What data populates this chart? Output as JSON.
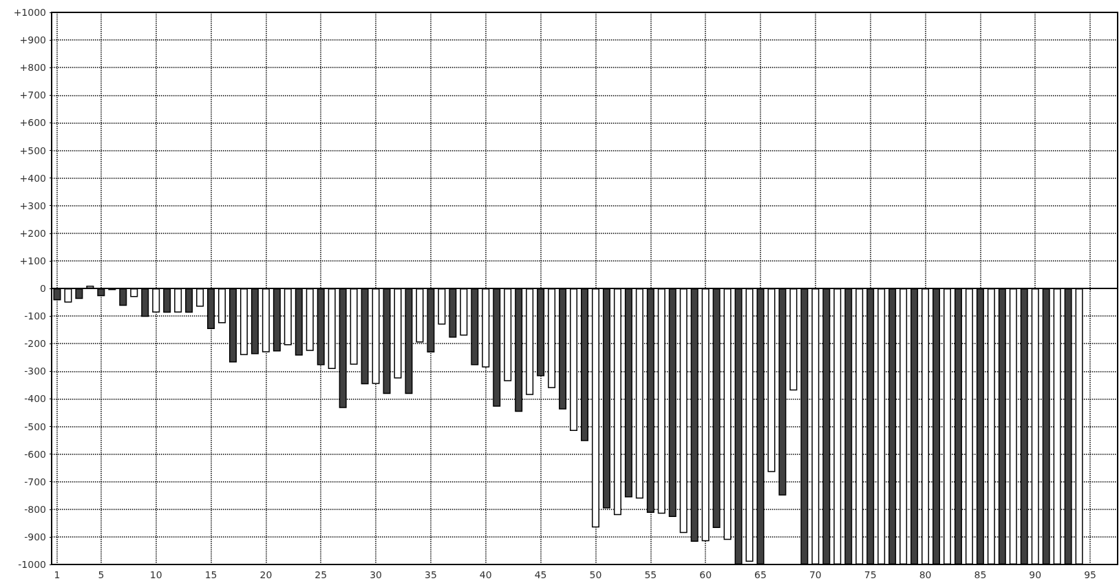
{
  "chart_data": {
    "type": "bar",
    "x": [
      1,
      2,
      3,
      4,
      5,
      6,
      7,
      8,
      9,
      10,
      11,
      12,
      13,
      14,
      15,
      16,
      17,
      18,
      19,
      20,
      21,
      22,
      23,
      24,
      25,
      26,
      27,
      28,
      29,
      30,
      31,
      32,
      33,
      34,
      35,
      36,
      37,
      38,
      39,
      40,
      41,
      42,
      43,
      44,
      45,
      46,
      47,
      48,
      49,
      50,
      51,
      52,
      53,
      54,
      55,
      56,
      57,
      58,
      59,
      60,
      61,
      62,
      63,
      64,
      65,
      66,
      67,
      68,
      69,
      70,
      71,
      72,
      73,
      74,
      75,
      76,
      77,
      78,
      79,
      80,
      81,
      82,
      83,
      84,
      85,
      86,
      87,
      88,
      89,
      90,
      91,
      92,
      93,
      94
    ],
    "values": [
      -43,
      -51,
      -38,
      10,
      -28,
      -6,
      -63,
      -31,
      -103,
      -87,
      -88,
      -87,
      -88,
      -66,
      -147,
      -126,
      -268,
      -241,
      -238,
      -231,
      -228,
      -206,
      -243,
      -226,
      -278,
      -292,
      -433,
      -276,
      -347,
      -346,
      -382,
      -326,
      -382,
      -196,
      -232,
      -131,
      -178,
      -171,
      -278,
      -286,
      -428,
      -336,
      -447,
      -386,
      -318,
      -361,
      -438,
      -516,
      -553,
      -866,
      -797,
      -821,
      -757,
      -761,
      -813,
      -816,
      -828,
      -886,
      -918,
      -916,
      -868,
      -911,
      -1000,
      -990,
      -1000,
      -665,
      -750,
      -370,
      -1000,
      -1000,
      -1000,
      -1000,
      -1000,
      -1000,
      -1000,
      -1000,
      -1000,
      -1000,
      -1000,
      -1000,
      -1000,
      -1000,
      -1000,
      -1000,
      -1000,
      -1000,
      -1000,
      -1000,
      -1000,
      -1000,
      -1000,
      -1000,
      -1000,
      -1000
    ],
    "colors": [
      "#404040",
      "#ffffff",
      "#404040",
      "#ffffff",
      "#404040",
      "#ffffff",
      "#404040",
      "#ffffff",
      "#404040",
      "#ffffff",
      "#404040",
      "#ffffff",
      "#404040",
      "#ffffff",
      "#404040",
      "#ffffff",
      "#404040",
      "#ffffff",
      "#404040",
      "#ffffff",
      "#404040",
      "#ffffff",
      "#404040",
      "#ffffff",
      "#404040",
      "#ffffff",
      "#404040",
      "#ffffff",
      "#404040",
      "#ffffff",
      "#404040",
      "#ffffff",
      "#404040",
      "#ffffff",
      "#404040",
      "#ffffff",
      "#404040",
      "#ffffff",
      "#404040",
      "#ffffff",
      "#404040",
      "#ffffff",
      "#404040",
      "#ffffff",
      "#404040",
      "#ffffff",
      "#404040",
      "#ffffff",
      "#404040",
      "#ffffff",
      "#404040",
      "#ffffff",
      "#404040",
      "#ffffff",
      "#404040",
      "#ffffff",
      "#404040",
      "#ffffff",
      "#404040",
      "#ffffff",
      "#404040",
      "#ffffff",
      "#404040",
      "#ffffff",
      "#404040",
      "#ffffff",
      "#404040",
      "#ffffff",
      "#404040",
      "#ffffff",
      "#404040",
      "#ffffff",
      "#404040",
      "#ffffff",
      "#404040",
      "#ffffff",
      "#404040",
      "#ffffff",
      "#404040",
      "#ffffff",
      "#404040",
      "#ffffff",
      "#404040",
      "#ffffff",
      "#404040",
      "#ffffff",
      "#404040",
      "#ffffff",
      "#404040",
      "#ffffff",
      "#404040",
      "#ffffff",
      "#404040",
      "#ffffff"
    ],
    "xlim": [
      0.5,
      97.5
    ],
    "xticks": [
      1,
      5,
      10,
      15,
      20,
      25,
      30,
      35,
      40,
      45,
      50,
      55,
      60,
      65,
      70,
      75,
      80,
      85,
      90,
      95
    ],
    "ylim": [
      -1000,
      1000
    ],
    "yticks": [
      {
        "value": 1000,
        "label": "+1000"
      },
      {
        "value": 900,
        "label": "+900"
      },
      {
        "value": 800,
        "label": "+800"
      },
      {
        "value": 700,
        "label": "+700"
      },
      {
        "value": 600,
        "label": "+600"
      },
      {
        "value": 500,
        "label": "+500"
      },
      {
        "value": 400,
        "label": "+400"
      },
      {
        "value": 300,
        "label": "+300"
      },
      {
        "value": 200,
        "label": "+200"
      },
      {
        "value": 100,
        "label": "+100"
      },
      0,
      -100,
      -200,
      -300,
      -400,
      -500,
      -600,
      -700,
      -800,
      -900,
      -1000
    ],
    "grid": true
  }
}
